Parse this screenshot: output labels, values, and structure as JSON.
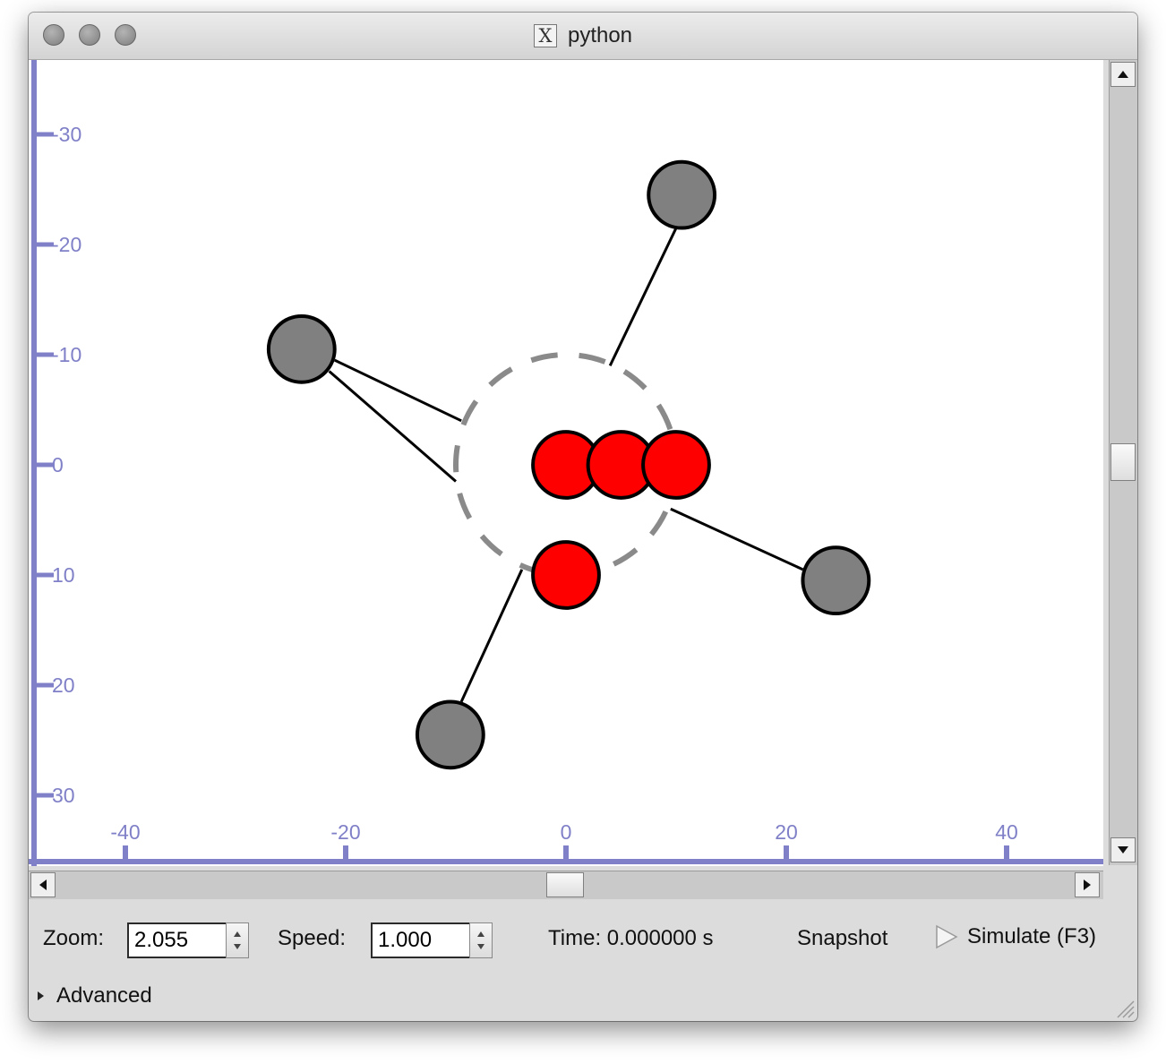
{
  "window": {
    "title": "python",
    "title_icon": "x11-icon"
  },
  "canvas": {
    "axis_color": "#8080c8",
    "y_ticks": [
      "-30",
      "-20",
      "-10",
      "0",
      "10",
      "20",
      "30"
    ],
    "x_ticks": [
      "-40",
      "-20",
      "0",
      "20",
      "40"
    ],
    "x_tick_values": [
      -40,
      -20,
      0,
      20,
      40
    ],
    "y_tick_values": [
      -30,
      -20,
      -10,
      0,
      10,
      20,
      30
    ],
    "boundary_circle": {
      "cx": 0,
      "cy": 0,
      "r": 10,
      "color": "#8a8a8a",
      "style": "dashed"
    },
    "red_particles": [
      {
        "x": 0,
        "y": 0
      },
      {
        "x": 5,
        "y": 0
      },
      {
        "x": 10,
        "y": 0
      },
      {
        "x": 0,
        "y": 10
      }
    ],
    "gray_particles": [
      {
        "x": 10.5,
        "y": -24.5
      },
      {
        "x": -24,
        "y": -10.5
      },
      {
        "x": 24.5,
        "y": 10.5
      },
      {
        "x": -10.5,
        "y": 24.5
      }
    ],
    "links": [
      {
        "x1": 10,
        "y1": -21.5,
        "x2": 4,
        "y2": -9
      },
      {
        "x1": -21,
        "y1": -9.5,
        "x2": -9.5,
        "y2": -4
      },
      {
        "x1": -21.5,
        "y1": -8.5,
        "x2": -10,
        "y2": 1.5
      },
      {
        "x1": 21.5,
        "y1": 9.5,
        "x2": 9.5,
        "y2": 4
      },
      {
        "x1": -9.5,
        "y1": 21.5,
        "x2": -4,
        "y2": 9.5
      }
    ],
    "red_color": "#ff0000",
    "gray_color": "#808080",
    "particle_radius": 3
  },
  "controls": {
    "zoom_label": "Zoom:",
    "zoom_value": "2.055",
    "speed_label": "Speed:",
    "speed_value": "1.000",
    "time_label": "Time: 0.000000 s",
    "snapshot_label": "Snapshot",
    "simulate_label": "Simulate (F3)",
    "simulate_icon": "play-icon"
  },
  "advanced": {
    "label": "Advanced",
    "icon": "disclosure-triangle-icon"
  }
}
